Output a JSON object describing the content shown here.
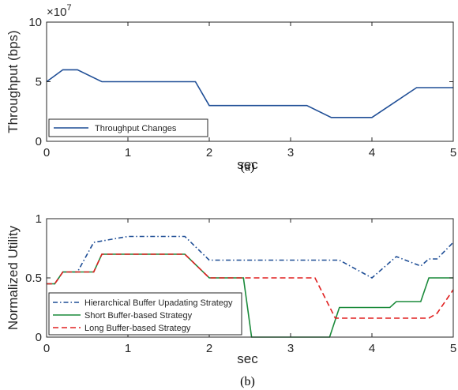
{
  "chart_data": [
    {
      "type": "line",
      "panel": "a",
      "caption": "(a)",
      "xlabel": "sec",
      "ylabel": "Throughput (bps)",
      "y_exponent": "×10",
      "y_exponent_power": "7",
      "xlim": [
        0,
        5
      ],
      "ylim": [
        0,
        10
      ],
      "xticks": [
        0,
        1,
        2,
        3,
        4,
        5
      ],
      "yticks": [
        0,
        5,
        10
      ],
      "grid": false,
      "legend_position": "lower-left",
      "series": [
        {
          "name": "Throughput Changes",
          "color": "#1f4e96",
          "dash": "solid",
          "x": [
            0,
            0.2,
            0.38,
            0.68,
            1.83,
            2.0,
            3.2,
            3.5,
            4.0,
            4.55,
            5.0
          ],
          "y": [
            5,
            6,
            6,
            5,
            5,
            3,
            3,
            2,
            2,
            4.5,
            4.5
          ]
        }
      ]
    },
    {
      "type": "line",
      "panel": "b",
      "caption": "(b)",
      "xlabel": "sec",
      "ylabel": "Normalized Utility",
      "xlim": [
        0,
        5
      ],
      "ylim": [
        0,
        1
      ],
      "xticks": [
        0,
        1,
        2,
        3,
        4,
        5
      ],
      "yticks": [
        0,
        0.5,
        1
      ],
      "grid": false,
      "legend_position": "lower-left",
      "series": [
        {
          "name": "Hierarchical Buffer Upadating Strategy",
          "color": "#1f4e96",
          "dash": "dashdot",
          "x": [
            0,
            0.1,
            0.2,
            0.38,
            0.58,
            1.0,
            1.7,
            2.0,
            3.6,
            4.0,
            4.3,
            4.6,
            4.7,
            4.8,
            5.0
          ],
          "y": [
            0.45,
            0.45,
            0.55,
            0.55,
            0.8,
            0.85,
            0.85,
            0.65,
            0.65,
            0.5,
            0.68,
            0.6,
            0.66,
            0.66,
            0.8
          ]
        },
        {
          "name": "Short Buffer-based Strategy",
          "color": "#1a8a3a",
          "dash": "solid",
          "x": [
            0,
            0.1,
            0.2,
            0.58,
            0.68,
            1.7,
            2.0,
            2.42,
            2.52,
            3.48,
            3.6,
            4.22,
            4.3,
            4.6,
            4.7,
            5.0
          ],
          "y": [
            0.45,
            0.45,
            0.55,
            0.55,
            0.7,
            0.7,
            0.5,
            0.5,
            0.0,
            0.0,
            0.25,
            0.25,
            0.3,
            0.3,
            0.5,
            0.5
          ]
        },
        {
          "name": "Long Buffer-based Strategy",
          "color": "#e02020",
          "dash": "dashed",
          "x": [
            0,
            0.1,
            0.2,
            0.58,
            0.68,
            1.7,
            2.0,
            3.3,
            3.55,
            4.7,
            4.8,
            5.0
          ],
          "y": [
            0.45,
            0.45,
            0.55,
            0.55,
            0.7,
            0.7,
            0.5,
            0.5,
            0.16,
            0.16,
            0.2,
            0.4
          ]
        }
      ]
    }
  ]
}
